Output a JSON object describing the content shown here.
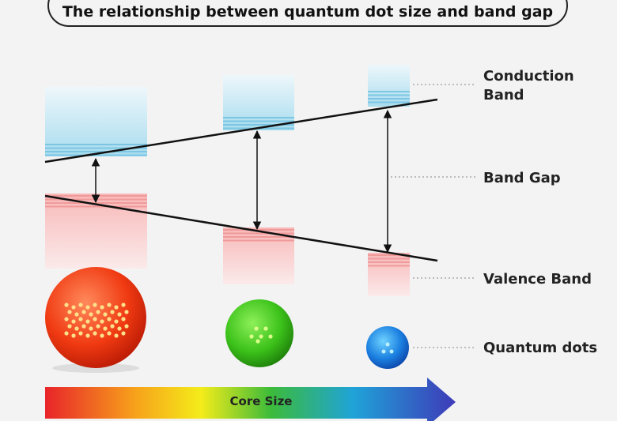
{
  "header": {
    "title": "The relationship between quantum dot size and band gap"
  },
  "labels": {
    "conduction_band": "Conduction Band",
    "band_gap": "Band Gap",
    "valence_band": "Valence Band",
    "quantum_dots": "Quantum dots"
  },
  "arrow_label": "Core Size"
}
